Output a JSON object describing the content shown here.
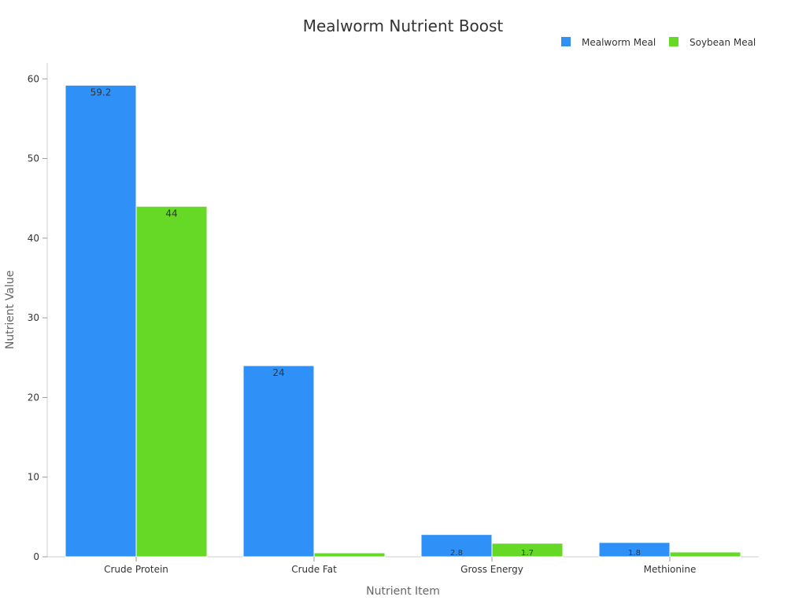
{
  "chart_data": {
    "type": "bar",
    "title": "Mealworm Nutrient Boost",
    "xlabel": "Nutrient Item",
    "ylabel": "Nutrient Value",
    "categories": [
      "Crude Protein",
      "Crude Fat",
      "Gross Energy",
      "Methionine"
    ],
    "series": [
      {
        "name": "Mealworm Meal",
        "color": "#2f91f7",
        "values": [
          59.2,
          24,
          2.8,
          1.8
        ],
        "labels": [
          "59.2",
          "24",
          "2.8",
          "1.8"
        ]
      },
      {
        "name": "Soybean Meal",
        "color": "#66d926",
        "values": [
          44,
          0.5,
          1.7,
          0.6
        ],
        "labels": [
          "44",
          "",
          "1.7",
          ""
        ]
      }
    ],
    "ylim": [
      0,
      62
    ],
    "yticks": [
      0,
      10,
      20,
      30,
      40,
      50,
      60
    ],
    "grid": false,
    "legend_position": "top-right"
  }
}
